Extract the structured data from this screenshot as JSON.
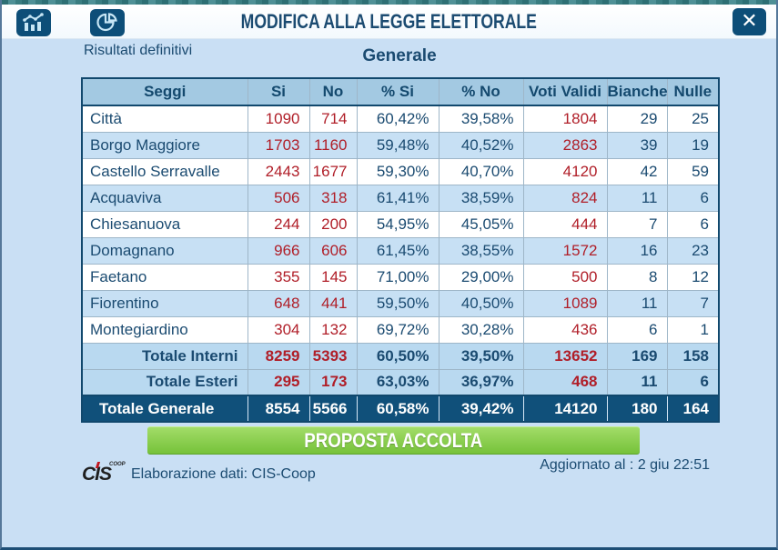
{
  "window": {
    "title": "MODIFICA ALLA LEGGE ELETTORALE",
    "close_label": "✕"
  },
  "header_icons": {
    "combo_chart": "combo-chart-icon",
    "pie_chart": "pie-chart-icon"
  },
  "subheader": {
    "left_label": "Risultati definitivi",
    "center_label": "Generale"
  },
  "chart_data": {
    "type": "table",
    "title": "MODIFICA ALLA LEGGE ELETTORALE - Generale",
    "columns": [
      "Seggi",
      "Si",
      "No",
      "% Si",
      "% No",
      "Voti Validi",
      "Bianche",
      "Nulle"
    ],
    "rows": [
      [
        "Città",
        "1090",
        "714",
        "60,42%",
        "39,58%",
        "1804",
        "29",
        "25"
      ],
      [
        "Borgo Maggiore",
        "1703",
        "1160",
        "59,48%",
        "40,52%",
        "2863",
        "39",
        "19"
      ],
      [
        "Castello Serravalle",
        "2443",
        "1677",
        "59,30%",
        "40,70%",
        "4120",
        "42",
        "59"
      ],
      [
        "Acquaviva",
        "506",
        "318",
        "61,41%",
        "38,59%",
        "824",
        "11",
        "6"
      ],
      [
        "Chiesanuova",
        "244",
        "200",
        "54,95%",
        "45,05%",
        "444",
        "7",
        "6"
      ],
      [
        "Domagnano",
        "966",
        "606",
        "61,45%",
        "38,55%",
        "1572",
        "16",
        "23"
      ],
      [
        "Faetano",
        "355",
        "145",
        "71,00%",
        "29,00%",
        "500",
        "8",
        "12"
      ],
      [
        "Fiorentino",
        "648",
        "441",
        "59,50%",
        "40,50%",
        "1089",
        "11",
        "7"
      ],
      [
        "Montegiardino",
        "304",
        "132",
        "69,72%",
        "30,28%",
        "436",
        "6",
        "1"
      ]
    ],
    "total_rows": [
      [
        "Totale Interni",
        "8259",
        "5393",
        "60,50%",
        "39,50%",
        "13652",
        "169",
        "158"
      ],
      [
        "Totale Esteri",
        "295",
        "173",
        "63,03%",
        "36,97%",
        "468",
        "11",
        "6"
      ]
    ],
    "grand_total": [
      "Totale Generale",
      "8554",
      "5566",
      "60,58%",
      "39,42%",
      "14120",
      "180",
      "164"
    ]
  },
  "banner": {
    "label": "PROPOSTA ACCOLTA",
    "color": "#7ec843"
  },
  "footer": {
    "logo_text": "CIS",
    "logo_sup": "COOP",
    "credit": "Elaborazione dati: CIS-Coop",
    "updated": "Aggiornato al : 2 giu 22:51"
  },
  "colors": {
    "navy": "#0d4e78",
    "text_navy": "#1b4b71",
    "red_values": "#b01e28",
    "row_alt_blue": "#c7e0f4",
    "total_row_blue": "#b9d9f0",
    "grand_row_navy": "#10507a",
    "header_row_blue": "#a3c9e2",
    "banner_green": "#7ec843",
    "body_blue": "#c9dff4"
  }
}
